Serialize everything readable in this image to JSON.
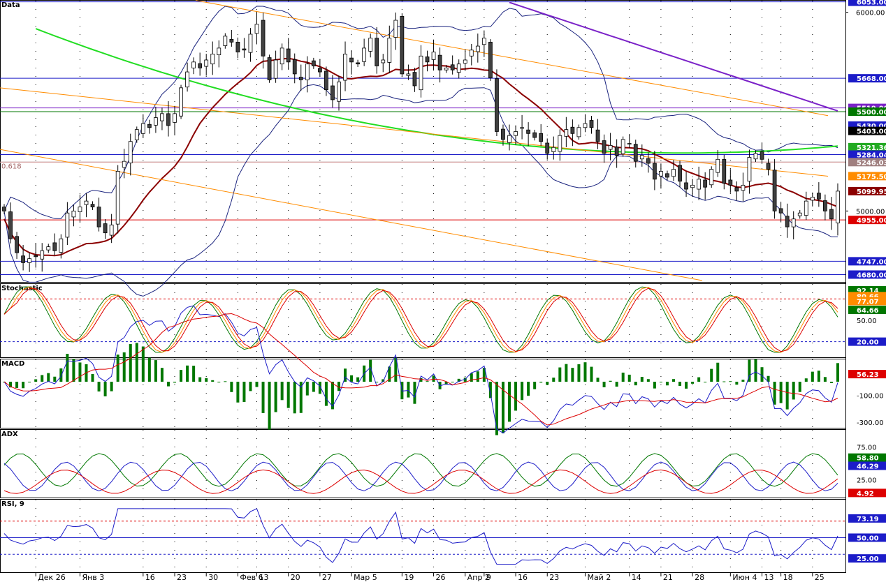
{
  "colors": {
    "background": "#ffffff",
    "grid": "#000000",
    "up": "#ffffff",
    "down": "#404040",
    "wick": "#000000",
    "ma_red": "#8b0000",
    "ma_green": "#22dd22",
    "ma_purple": "#7b22c8",
    "bands": "#1a237e",
    "channel": "#ff8c00",
    "blue": "#1c1cc8",
    "green": "#007700",
    "red": "#dd0000"
  },
  "panels": [
    {
      "id": "price",
      "label": "Data"
    },
    {
      "id": "stoch",
      "label": "Stochastic"
    },
    {
      "id": "macd",
      "label": "MACD"
    },
    {
      "id": "adx",
      "label": "ADX"
    },
    {
      "id": "rsi",
      "label": "RSI, 9"
    }
  ],
  "chart_data": [
    {
      "type": "candlestick",
      "panel": "price",
      "ylim": [
        4650,
        6055
      ],
      "y_ticks": [
        "6000.00",
        "5000.00"
      ],
      "fib_label": "0.618",
      "x_labels": [
        "Дек 26",
        "Янв 3",
        "16",
        "23",
        "30",
        "Фев 6",
        "13",
        "20",
        "27",
        "Мар 5",
        "19",
        "26",
        "Апр 2",
        "9",
        "16",
        "23",
        "Май 2",
        "14",
        "21",
        "28",
        "Июн 4",
        "13",
        "18",
        "25"
      ],
      "x_label_positions": [
        5,
        12,
        22,
        27,
        32,
        37,
        40,
        45,
        50,
        55,
        63,
        68,
        73,
        76,
        81,
        86,
        92,
        99,
        104,
        109,
        115,
        120,
        123,
        128
      ],
      "bars": 133,
      "close": [
        5000,
        4860,
        4790,
        4740,
        4760,
        4770,
        4800,
        4820,
        4800,
        4860,
        4990,
        5000,
        5020,
        5050,
        5020,
        4920,
        4890,
        4930,
        5200,
        5250,
        5350,
        5410,
        5440,
        5420,
        5470,
        5490,
        5430,
        5490,
        5620,
        5700,
        5750,
        5720,
        5760,
        5790,
        5820,
        5880,
        5850,
        5800,
        5810,
        5890,
        5940,
        5780,
        5660,
        5760,
        5820,
        5750,
        5690,
        5660,
        5740,
        5730,
        5700,
        5610,
        5560,
        5650,
        5790,
        5750,
        5740,
        5820,
        5870,
        5730,
        5760,
        5870,
        5960,
        5690,
        5690,
        5630,
        5780,
        5750,
        5800,
        5710,
        5720,
        5710,
        5740,
        5760,
        5810,
        5830,
        5870,
        5670,
        5400,
        5360,
        5380,
        5400,
        5420,
        5390,
        5370,
        5350,
        5290,
        5320,
        5380,
        5410,
        5390,
        5420,
        5440,
        5420,
        5350,
        5290,
        5330,
        5280,
        5360,
        5340,
        5250,
        5280,
        5240,
        5160,
        5200,
        5170,
        5210,
        5150,
        5110,
        5130,
        5160,
        5120,
        5210,
        5260,
        5140,
        5130,
        5100,
        5130,
        5270,
        5290,
        5260,
        5210,
        5000,
        4990,
        4920,
        4960,
        4990,
        5050,
        5070,
        5060,
        5000,
        4960,
        5100
      ],
      "h_lines": [
        {
          "value": 6053,
          "label": "6053.00",
          "color": "#1c1cc8"
        },
        {
          "value": 5668,
          "label": "5668.00",
          "color": "#1c1cc8"
        },
        {
          "value": 5519,
          "label": "5519.00",
          "color": "#7b22c8"
        },
        {
          "value": 5500,
          "label": "5500.00",
          "color": "#007700"
        },
        {
          "value": 5430,
          "label": "5430.00",
          "color": "#1c1cc8"
        },
        {
          "value": 5403,
          "label": "5403.00",
          "color": "#000000"
        },
        {
          "value": 5321.36,
          "label": "5321.36",
          "color": "#22aa22"
        },
        {
          "value": 5284.04,
          "label": "5284.04",
          "color": "#1c1cc8"
        },
        {
          "value": 5246.03,
          "label": "5246.03",
          "color": "#a08080"
        },
        {
          "value": 5175.5,
          "label": "5175.50",
          "color": "#ff8c00"
        },
        {
          "value": 5099.95,
          "label": "5099.95",
          "color": "#8b0000"
        },
        {
          "value": 4955,
          "label": "4955.00",
          "color": "#dd0000"
        },
        {
          "value": 4747,
          "label": "4747.00",
          "color": "#1c1cc8"
        },
        {
          "value": 4680,
          "label": "4680.00",
          "color": "#1c1cc8"
        }
      ]
    },
    {
      "type": "line",
      "panel": "stoch",
      "ylim": [
        0,
        100
      ],
      "y_ticks": [
        "50.00"
      ],
      "values": [
        {
          "label": "92.14",
          "color": "#007700"
        },
        {
          "label": "80.66",
          "color": "#ff8c00"
        },
        {
          "label": "77.07",
          "color": "#ff8c00"
        },
        {
          "label": "64.66",
          "color": "#007700"
        },
        {
          "label": "20.00",
          "color": "#1c1cc8"
        }
      ]
    },
    {
      "type": "bar+line",
      "panel": "macd",
      "ylim": [
        -330,
        160
      ],
      "y_ticks": [
        "-100.00",
        "-300.00"
      ],
      "values": [
        {
          "label": "56.23",
          "color": "#dd0000"
        }
      ]
    },
    {
      "type": "line",
      "panel": "adx",
      "ylim": [
        0,
        100
      ],
      "y_ticks": [
        "75.00",
        "25.00"
      ],
      "values": [
        {
          "label": "58.80",
          "color": "#007700"
        },
        {
          "label": "46.29",
          "color": "#1c1cc8"
        },
        {
          "label": "4.92",
          "color": "#dd0000"
        }
      ]
    },
    {
      "type": "line",
      "panel": "rsi",
      "ylim": [
        10,
        95
      ],
      "y_ticks": [],
      "values": [
        {
          "label": "73.19",
          "color": "#1c1cc8"
        },
        {
          "label": "50.00",
          "color": "#1c1cc8"
        },
        {
          "label": "25.00",
          "color": "#1c1cc8"
        }
      ]
    }
  ]
}
